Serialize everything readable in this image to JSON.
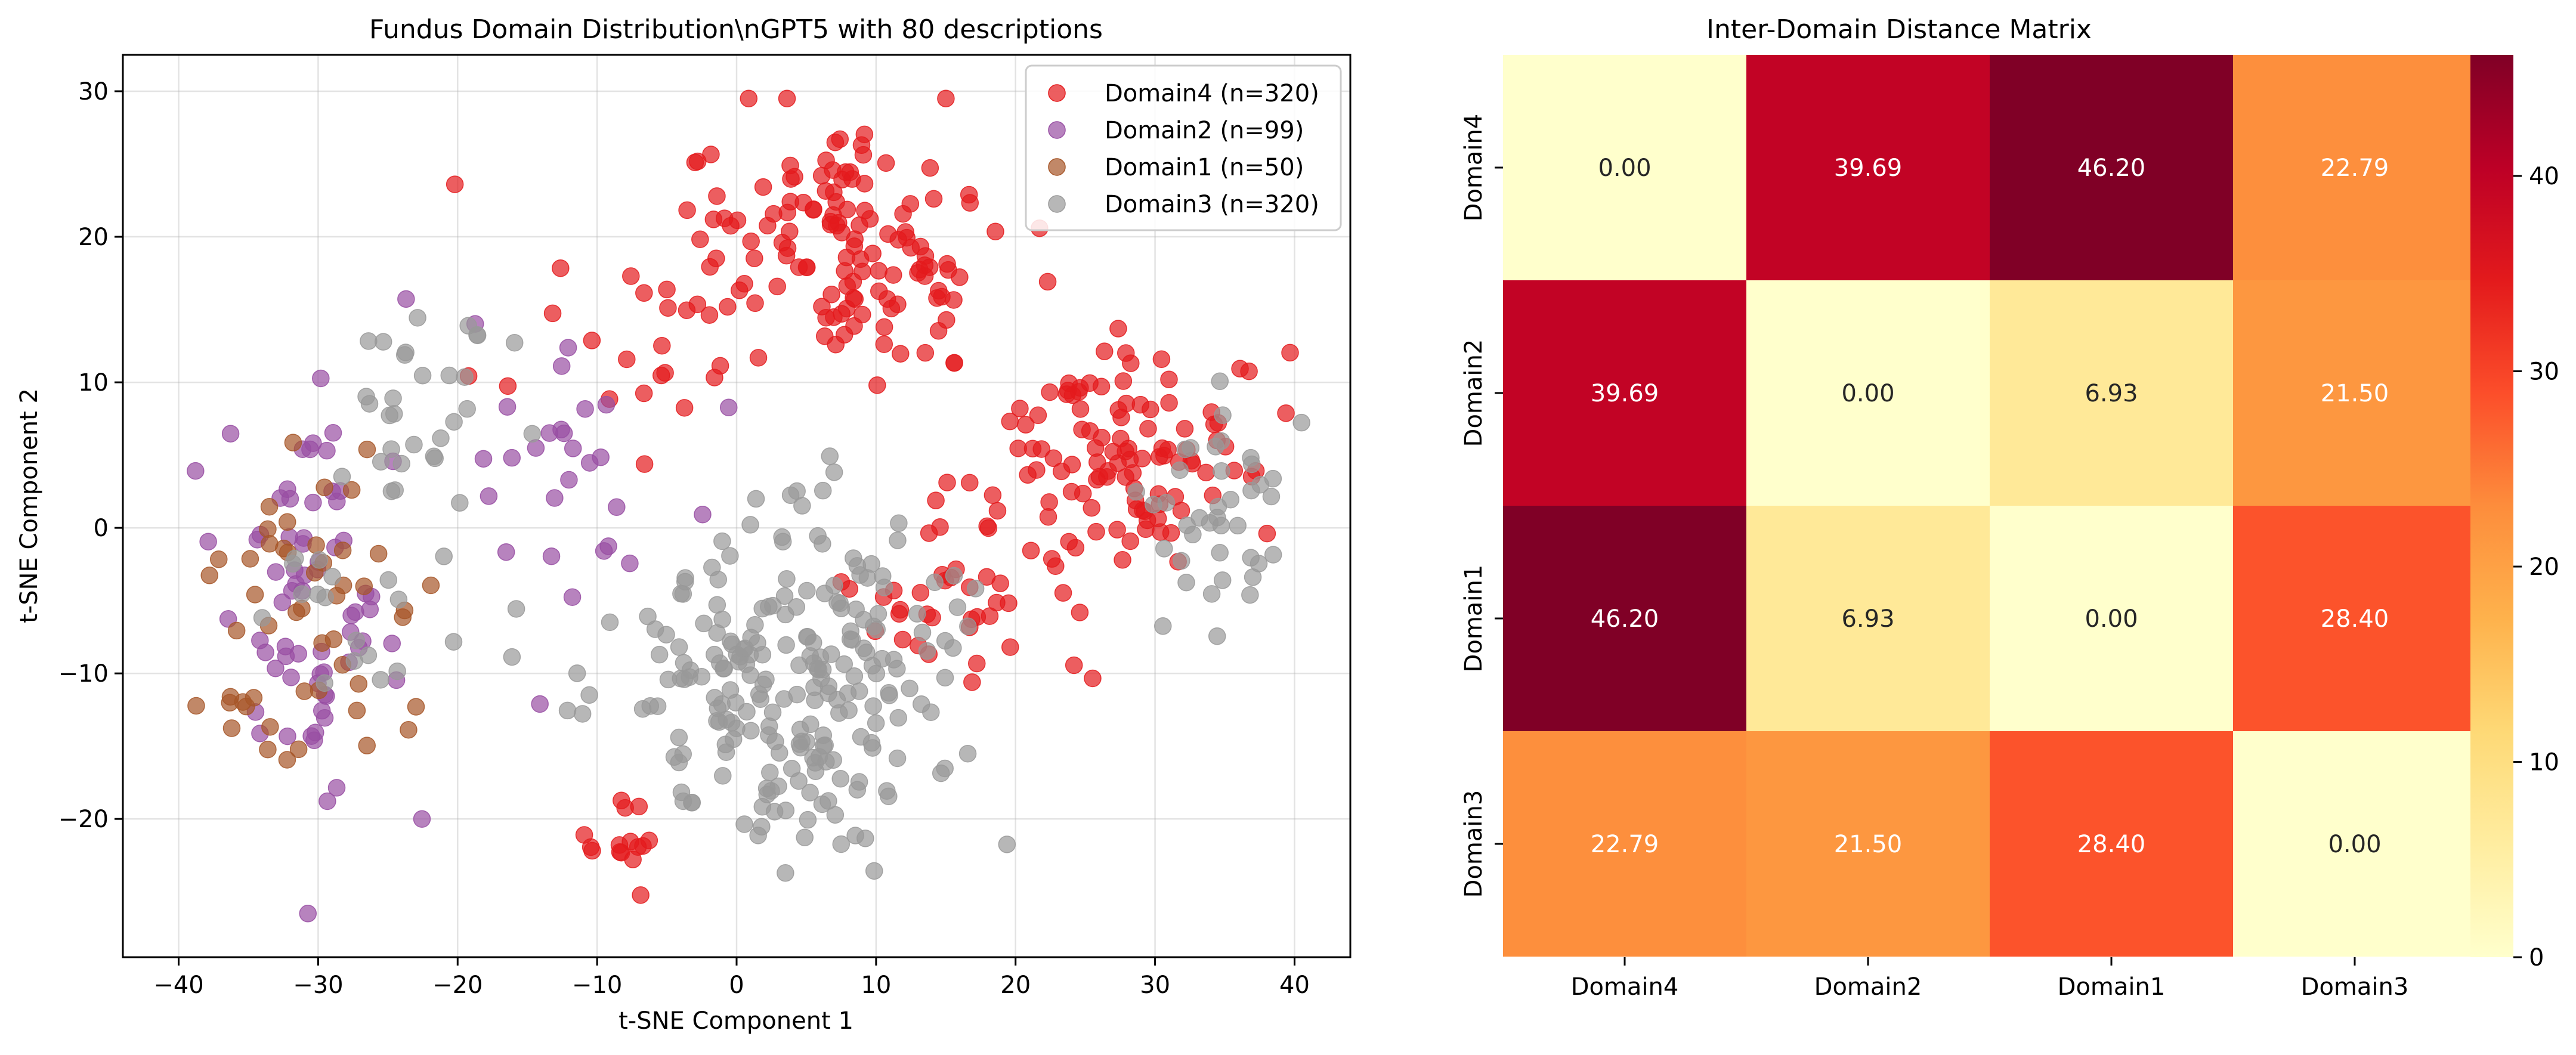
{
  "chart_data": [
    {
      "type": "scatter",
      "title": "Fundus Domain Distribution\\nGPT5 with 80 descriptions",
      "xlabel": "t-SNE Component 1",
      "ylabel": "t-SNE Component 2",
      "xlim": [
        -44,
        44
      ],
      "ylim": [
        -29.5,
        32.5
      ],
      "xticks": [
        -40,
        -30,
        -20,
        -10,
        0,
        10,
        20,
        30,
        40
      ],
      "yticks": [
        -20,
        -10,
        0,
        10,
        20,
        30
      ],
      "grid": true,
      "legend_position": "top-right",
      "series": [
        {
          "name": "Domain4 (n=320)",
          "color": "#e41a1c",
          "clusters": [
            {
              "cx": 9,
              "cy": 19,
              "sx": 7,
              "sy": 5.5,
              "n": 130
            },
            {
              "cx": 27,
              "cy": 5,
              "sx": 6.5,
              "sy": 5,
              "n": 110
            },
            {
              "cx": 16,
              "cy": -4,
              "sx": 5,
              "sy": 5,
              "n": 40
            },
            {
              "cx": -9,
              "cy": 13,
              "sx": 7,
              "sy": 4,
              "n": 25
            },
            {
              "cx": -8,
              "cy": -22,
              "sx": 2,
              "sy": 2,
              "n": 15
            }
          ]
        },
        {
          "name": "Domain2 (n=99)",
          "color": "#984ea3",
          "clusters": [
            {
              "cx": -31,
              "cy": -4,
              "sx": 4.5,
              "sy": 9,
              "n": 70
            },
            {
              "cx": -12,
              "cy": 2,
              "sx": 6,
              "sy": 8,
              "n": 29
            }
          ]
        },
        {
          "name": "Domain1 (n=50)",
          "color": "#a65628",
          "clusters": [
            {
              "cx": -31,
              "cy": -6,
              "sx": 5.5,
              "sy": 7,
              "n": 50
            }
          ]
        },
        {
          "name": "Domain3 (n=320)",
          "color": "#999999",
          "clusters": [
            {
              "cx": 4,
              "cy": -10,
              "sx": 8,
              "sy": 7.5,
              "n": 230
            },
            {
              "cx": -22,
              "cy": 8,
              "sx": 5,
              "sy": 6,
              "n": 30
            },
            {
              "cx": 34,
              "cy": 1,
              "sx": 5,
              "sy": 5,
              "n": 40
            },
            {
              "cx": -28,
              "cy": -6,
              "sx": 6,
              "sy": 6,
              "n": 20
            }
          ]
        }
      ]
    },
    {
      "type": "heatmap",
      "title": "Inter-Domain Distance Matrix",
      "x_categories": [
        "Domain4",
        "Domain2",
        "Domain1",
        "Domain3"
      ],
      "y_categories": [
        "Domain4",
        "Domain2",
        "Domain1",
        "Domain3"
      ],
      "values": [
        [
          0.0,
          39.69,
          46.2,
          22.79
        ],
        [
          39.69,
          0.0,
          6.93,
          21.5
        ],
        [
          46.2,
          6.93,
          0.0,
          28.4
        ],
        [
          22.79,
          21.5,
          28.4,
          0.0
        ]
      ],
      "value_labels": [
        [
          "0.00",
          "39.69",
          "46.20",
          "22.79"
        ],
        [
          "39.69",
          "0.00",
          "6.93",
          "21.50"
        ],
        [
          "46.20",
          "6.93",
          "0.00",
          "28.40"
        ],
        [
          "22.79",
          "21.50",
          "28.40",
          "0.00"
        ]
      ],
      "colormap": "YlOrRd",
      "vmin": 0,
      "vmax": 46.2,
      "colorbar_ticks": [
        0,
        10,
        20,
        30,
        40
      ]
    }
  ]
}
